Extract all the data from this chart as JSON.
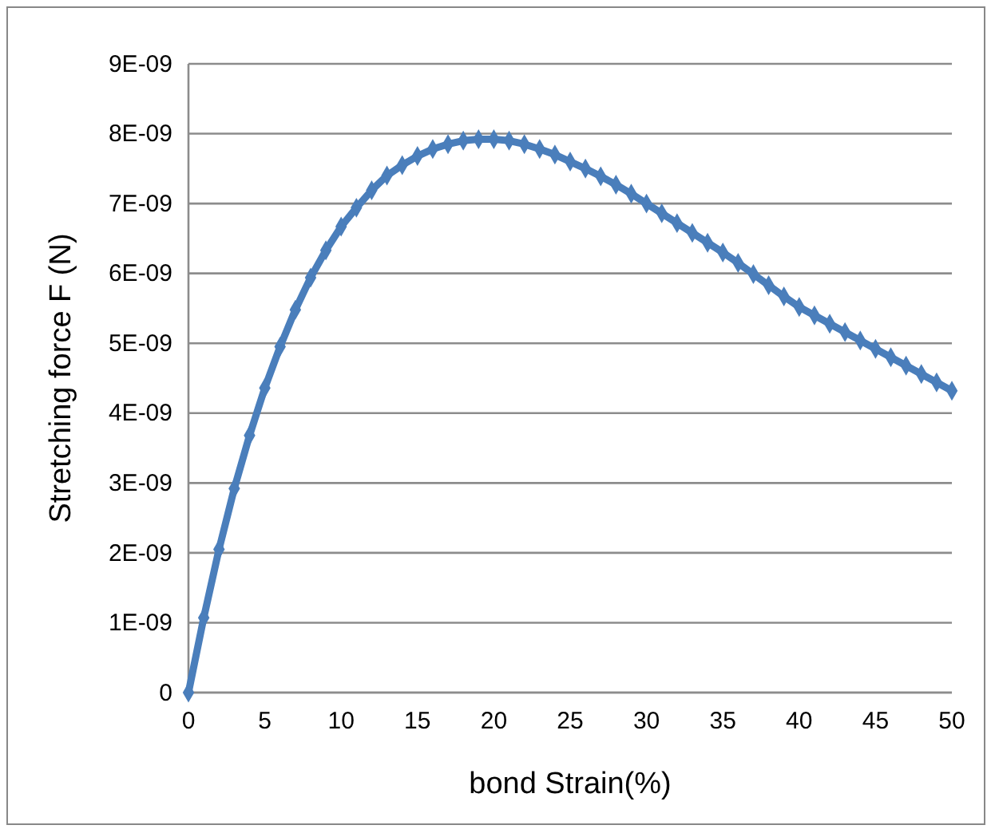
{
  "chart_data": {
    "type": "line",
    "xlabel": "bond Strain(%)",
    "ylabel": "Stretching  force  F (N)",
    "x": [
      0,
      1,
      2,
      3,
      4,
      5,
      6,
      7,
      8,
      9,
      10,
      11,
      12,
      13,
      14,
      15,
      16,
      17,
      18,
      19,
      20,
      21,
      22,
      23,
      24,
      25,
      26,
      27,
      28,
      29,
      30,
      31,
      32,
      33,
      34,
      35,
      36,
      37,
      38,
      39,
      40,
      41,
      42,
      43,
      44,
      45,
      46,
      47,
      48,
      49,
      50
    ],
    "series": [
      {
        "color": "#4a7ebb",
        "values": [
          0,
          1.07e-09,
          2.05e-09,
          2.92e-09,
          3.68e-09,
          4.36e-09,
          4.95e-09,
          5.48e-09,
          5.94e-09,
          6.33e-09,
          6.67e-09,
          6.94e-09,
          7.19e-09,
          7.4e-09,
          7.55e-09,
          7.68e-09,
          7.78e-09,
          7.85e-09,
          7.9e-09,
          7.92e-09,
          7.92e-09,
          7.9e-09,
          7.85e-09,
          7.78e-09,
          7.7e-09,
          7.6e-09,
          7.5e-09,
          7.39e-09,
          7.27e-09,
          7.14e-09,
          7e-09,
          6.86e-09,
          6.72e-09,
          6.58e-09,
          6.44e-09,
          6.3e-09,
          6.15e-09,
          5.99e-09,
          5.83e-09,
          5.67e-09,
          5.52e-09,
          5.4e-09,
          5.28e-09,
          5.16e-09,
          5.04e-09,
          4.92e-09,
          4.8e-09,
          4.68e-09,
          4.56e-09,
          4.44e-09,
          4.32e-09
        ]
      }
    ],
    "xlim": [
      0,
      50
    ],
    "xticks": [
      0,
      5,
      10,
      15,
      20,
      25,
      30,
      35,
      40,
      45,
      50
    ],
    "ylim": [
      0,
      9e-09
    ],
    "yticks": [
      0,
      {
        "value": 1e-09,
        "label": "1E-09"
      },
      {
        "value": 2e-09,
        "label": "2E-09"
      },
      {
        "value": 3e-09,
        "label": "3E-09"
      },
      {
        "value": 4e-09,
        "label": "4E-09"
      },
      {
        "value": 5e-09,
        "label": "5E-09"
      },
      {
        "value": 6e-09,
        "label": "6E-09"
      },
      {
        "value": 7e-09,
        "label": "7E-09"
      },
      {
        "value": 8e-09,
        "label": "8E-09"
      },
      {
        "value": 9e-09,
        "label": "9E-09"
      }
    ],
    "grid": "y",
    "marker": "diamond",
    "line_style": "solid"
  }
}
